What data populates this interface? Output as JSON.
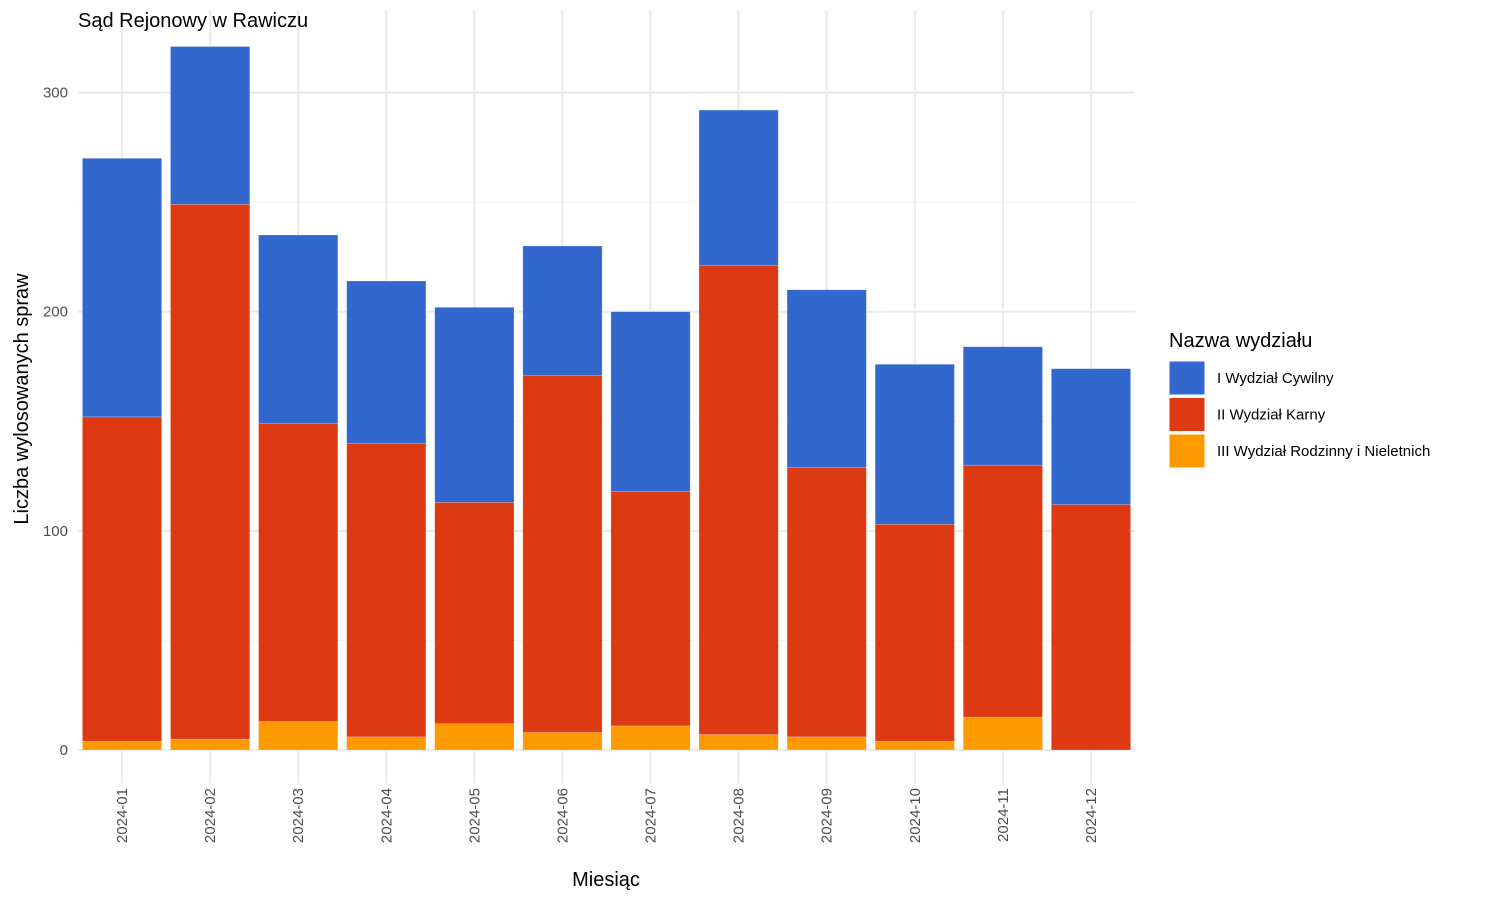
{
  "chart_data": {
    "type": "bar",
    "stacked": true,
    "title": "Sąd Rejonowy w Rawiczu",
    "xlabel": "Miesiąc",
    "ylabel": "Liczba wylosowanych spraw",
    "ylim": [
      0,
      330
    ],
    "yticks": [
      0,
      100,
      200,
      300
    ],
    "grid": true,
    "legend_position": "right",
    "legend_title": "Nazwa wydziału",
    "categories": [
      "2024-01",
      "2024-02",
      "2024-03",
      "2024-04",
      "2024-05",
      "2024-06",
      "2024-07",
      "2024-08",
      "2024-09",
      "2024-10",
      "2024-11",
      "2024-12"
    ],
    "series": [
      {
        "name": "I Wydział Cywilny",
        "color": "#3268cd",
        "values": [
          118,
          72,
          86,
          74,
          89,
          59,
          82,
          71,
          81,
          73,
          54,
          62
        ]
      },
      {
        "name": "II Wydział Karny",
        "color": "#dd3912",
        "values": [
          148,
          244,
          136,
          134,
          101,
          163,
          107,
          214,
          123,
          99,
          115,
          112
        ]
      },
      {
        "name": "III Wydział Rodzinny i Nieletnich",
        "color": "#ff9900",
        "values": [
          4,
          5,
          13,
          6,
          12,
          8,
          11,
          7,
          6,
          4,
          15,
          0
        ]
      }
    ]
  }
}
